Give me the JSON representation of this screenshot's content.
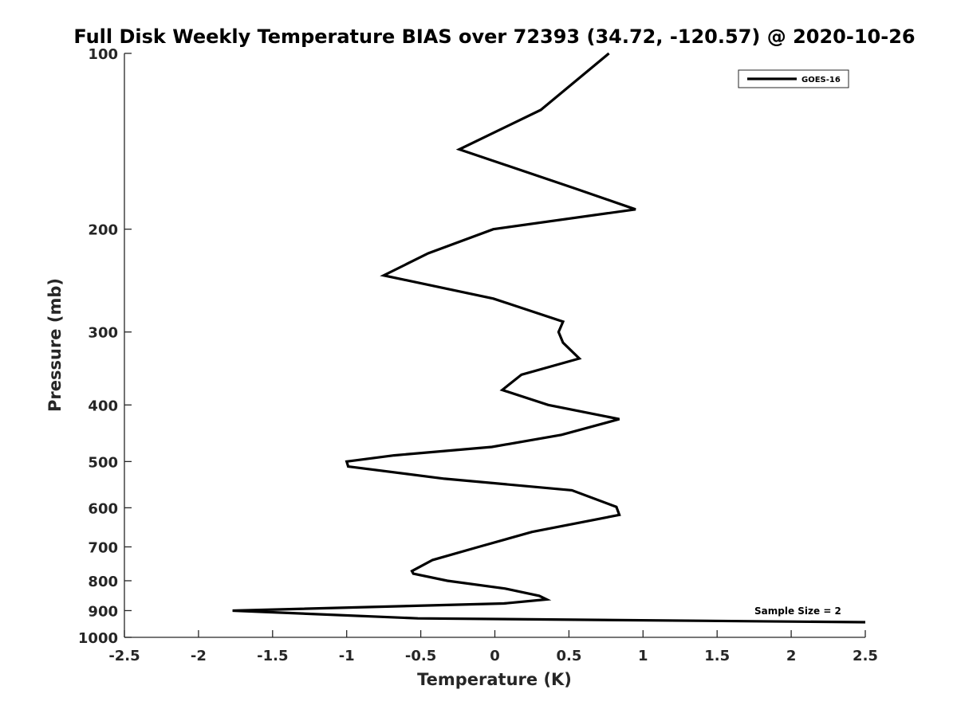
{
  "chart_data": {
    "type": "line",
    "title": "Full Disk Weekly Temperature BIAS over 72393 (34.72, -120.57) @ 2020-10-26",
    "xlabel": "Temperature (K)",
    "ylabel": "Pressure (mb)",
    "xlim": [
      -2.5,
      2.5
    ],
    "ylim": [
      100,
      1000
    ],
    "y_scale": "log",
    "y_reversed": true,
    "x_ticks": [
      "-2.5",
      "-2",
      "-1.5",
      "-1",
      "-0.5",
      "0",
      "0.5",
      "1",
      "1.5",
      "2",
      "2.5"
    ],
    "x_tick_values": [
      -2.5,
      -2,
      -1.5,
      -1,
      -0.5,
      0,
      0.5,
      1,
      1.5,
      2,
      2.5
    ],
    "y_ticks": [
      "100",
      "200",
      "300",
      "400",
      "500",
      "600",
      "700",
      "800",
      "900",
      "1000"
    ],
    "y_tick_values": [
      100,
      200,
      300,
      400,
      500,
      600,
      700,
      800,
      900,
      1000
    ],
    "grid": false,
    "legend_position": "top-right",
    "annotation": "Sample Size = 2",
    "line_color": "#000000",
    "series": [
      {
        "name": "GOES-16",
        "x": [
          0.77,
          0.31,
          -0.24,
          0.53,
          0.95,
          -0.01,
          -0.45,
          -0.75,
          -0.01,
          0.46,
          0.43,
          0.46,
          0.57,
          0.18,
          0.05,
          0.36,
          0.84,
          0.45,
          -0.02,
          -0.68,
          -1.0,
          -0.99,
          -0.34,
          0.52,
          0.82,
          0.84,
          0.25,
          -0.11,
          -0.42,
          -0.56,
          -0.55,
          -0.32,
          0.07,
          0.3,
          0.35,
          0.06,
          -1.77,
          -0.52,
          2.5
        ],
        "y": [
          100,
          125,
          146,
          170,
          185,
          200,
          220,
          240,
          263,
          288,
          300,
          313,
          333,
          355,
          377,
          400,
          423,
          450,
          472,
          488,
          500,
          510,
          535,
          560,
          598,
          617,
          660,
          700,
          737,
          770,
          778,
          800,
          825,
          849,
          861,
          875,
          900,
          928,
          942
        ]
      }
    ]
  }
}
